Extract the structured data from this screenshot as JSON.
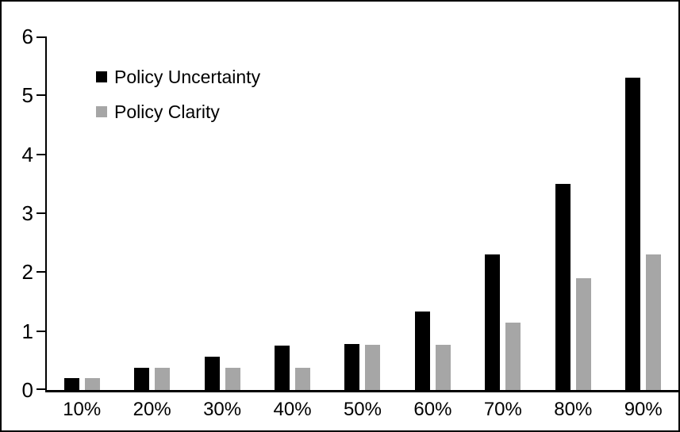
{
  "chart_data": {
    "type": "bar",
    "title": "",
    "xlabel": "",
    "ylabel": "",
    "categories": [
      "10%",
      "20%",
      "30%",
      "40%",
      "50%",
      "60%",
      "70%",
      "80%",
      "90%"
    ],
    "series": [
      {
        "name": "Policy Uncertainty",
        "color": "#000000",
        "values": [
          0.2,
          0.38,
          0.57,
          0.75,
          0.78,
          1.33,
          2.3,
          3.5,
          5.3
        ]
      },
      {
        "name": "Policy Clarity",
        "color": "#a6a6a6",
        "values": [
          0.2,
          0.38,
          0.38,
          0.38,
          0.77,
          0.77,
          1.15,
          1.9,
          2.3
        ]
      }
    ],
    "ylim": [
      0,
      6
    ],
    "yticks": [
      "0",
      "1",
      "2",
      "3",
      "4",
      "5",
      "6"
    ],
    "grid": false,
    "legend_position": "upper-left-inside",
    "frame": {
      "border_color": "#000000",
      "background": "#ffffff"
    }
  }
}
